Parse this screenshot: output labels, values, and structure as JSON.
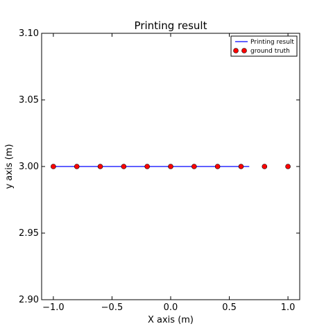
{
  "chart_data": {
    "type": "line",
    "title": "Printing result",
    "xlabel": "X axis (m)",
    "ylabel": "y axis (m)",
    "xlim": [
      -1.1,
      1.1
    ],
    "ylim": [
      2.9,
      3.1
    ],
    "xticks": [
      "−1.0",
      "−0.5",
      "0.0",
      "0.5",
      "1.0"
    ],
    "xtick_values": [
      -1.0,
      -0.5,
      0.0,
      0.5,
      1.0
    ],
    "yticks": [
      "2.90",
      "2.95",
      "3.00",
      "3.05",
      "3.10"
    ],
    "ytick_values": [
      2.9,
      2.95,
      3.0,
      3.05,
      3.1
    ],
    "grid": false,
    "legend_position": "top-right",
    "series": [
      {
        "name": "Printing result",
        "kind": "line",
        "color": "#0000ff",
        "x": [
          -1.0,
          0.67
        ],
        "y": [
          3.0,
          3.0
        ]
      },
      {
        "name": "ground truth",
        "kind": "scatter",
        "color": "#ff0000",
        "x": [
          -1.0,
          -0.8,
          -0.6,
          -0.4,
          -0.2,
          0.0,
          0.2,
          0.4,
          0.6,
          0.8,
          1.0
        ],
        "y": [
          3.0,
          3.0,
          3.0,
          3.0,
          3.0,
          3.0,
          3.0,
          3.0,
          3.0,
          3.0,
          3.0
        ]
      }
    ]
  }
}
